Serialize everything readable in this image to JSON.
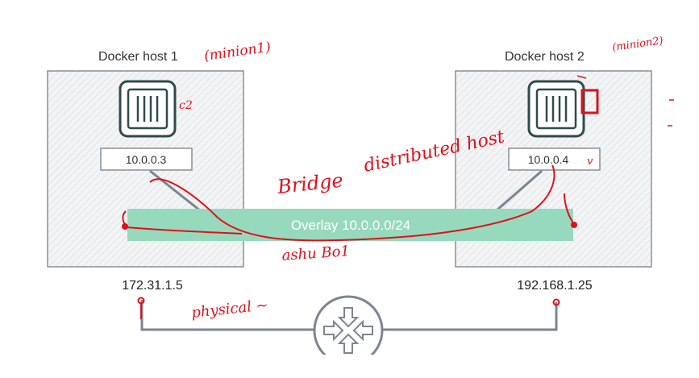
{
  "hosts": [
    {
      "title": "Docker host 1",
      "container_ip": "10.0.0.3",
      "physical_ip": "172.31.1.5"
    },
    {
      "title": "Docker host 2",
      "container_ip": "10.0.0.4",
      "physical_ip": "192.168.1.25"
    }
  ],
  "overlay": {
    "label": "Overlay 10.0.0.0/24"
  },
  "annotations": {
    "minion1": "(minion1)",
    "minion2": "(minion2)",
    "c2": "c2",
    "bridge": "Bridge",
    "distributed_host": "distributed host",
    "ashu_bo1": "ashu Bo1",
    "physical": "physical ~",
    "check": "v"
  },
  "colors": {
    "host_border": "#8a8f96",
    "host_hatch": "#e2e4e7",
    "container_border": "#2f4a4e",
    "overlay_fill": "#97d9bd",
    "network_line": "#7d8591",
    "annotation_ink": "#e0101a"
  },
  "icons": {
    "container": "container-icon",
    "router": "router-icon"
  }
}
